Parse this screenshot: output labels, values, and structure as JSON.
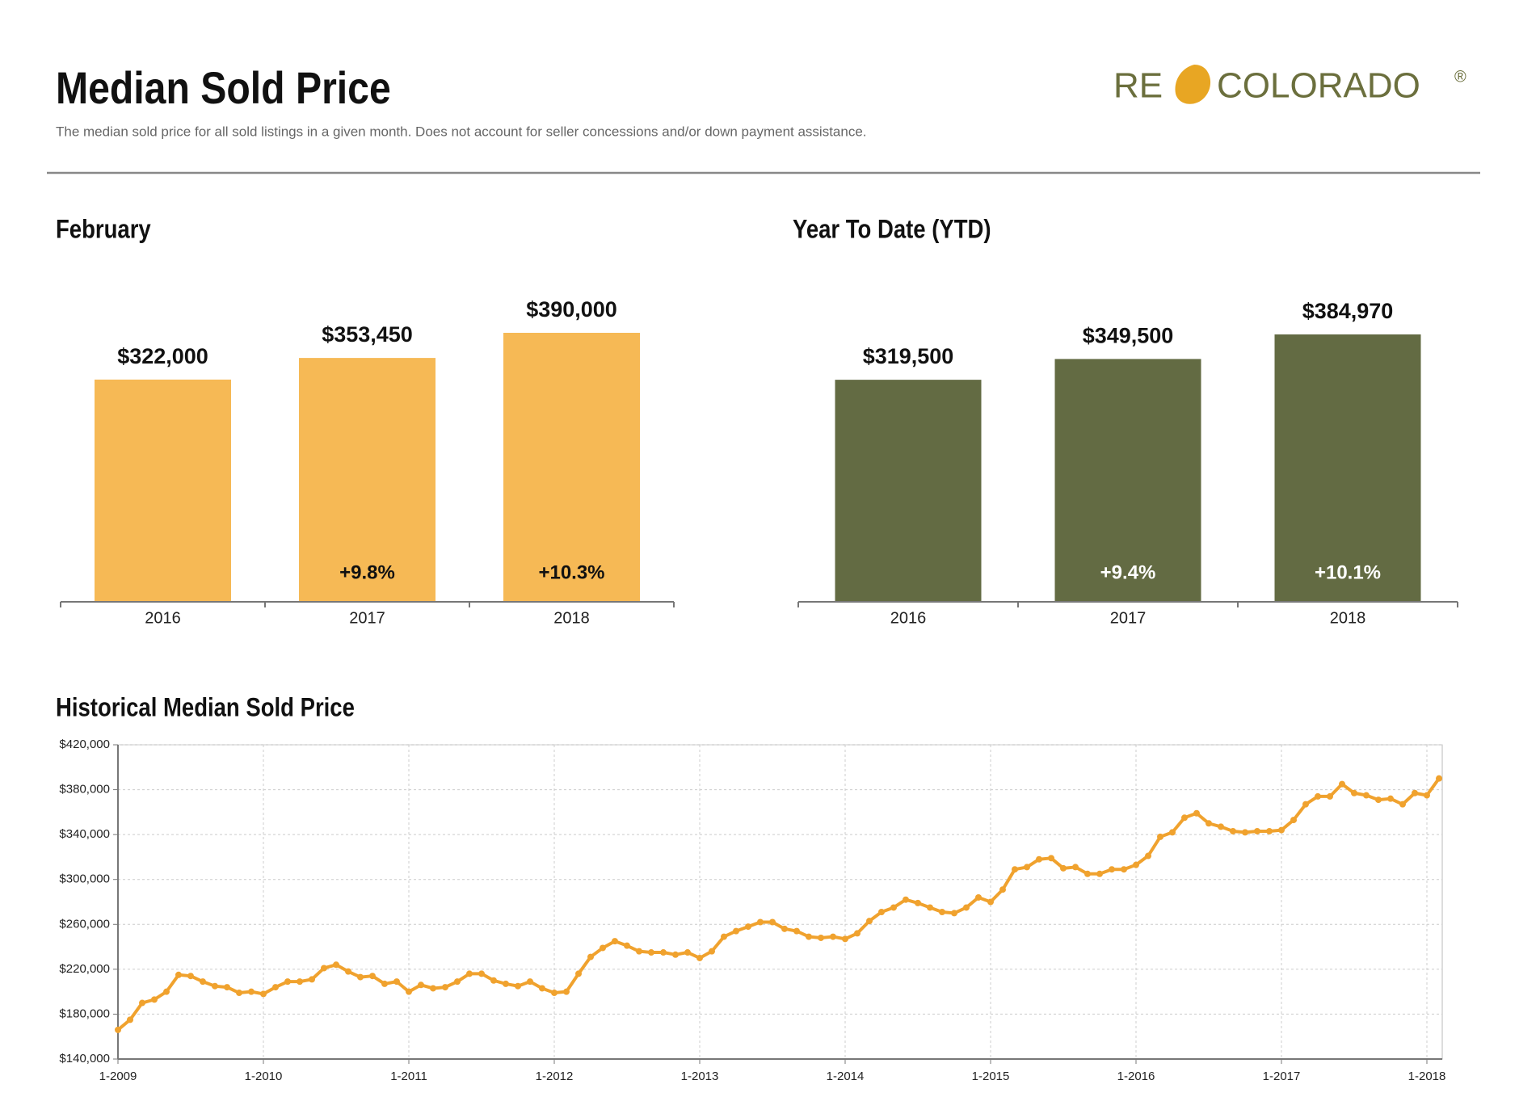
{
  "header": {
    "title": "Median Sold Price",
    "subtitle": "The median sold price for all sold listings in a given month. Does not account for seller concessions and/or down payment assistance.",
    "logo_left": "RE",
    "logo_right": "COLORADO",
    "logo_mark": "®"
  },
  "chart_data": [
    {
      "type": "bar",
      "title": "February",
      "categories": [
        "2016",
        "2017",
        "2018"
      ],
      "values": [
        322000,
        353450,
        390000
      ],
      "value_labels": [
        "$322,000",
        "$353,450",
        "$390,000"
      ],
      "change_labels": [
        null,
        "+9.8%",
        "+10.3%"
      ],
      "color": "#f6b955",
      "change_label_color": "#111111"
    },
    {
      "type": "bar",
      "title": "Year To Date (YTD)",
      "categories": [
        "2016",
        "2017",
        "2018"
      ],
      "values": [
        319500,
        349500,
        384970
      ],
      "value_labels": [
        "$319,500",
        "$349,500",
        "$384,970"
      ],
      "change_labels": [
        null,
        "+9.4%",
        "+10.1%"
      ],
      "color": "#636b43",
      "change_label_color": "#ffffff"
    },
    {
      "type": "line",
      "title": "Historical Median Sold Price",
      "categories": [
        "1-2009",
        null,
        null,
        null,
        null,
        null,
        null,
        null,
        null,
        null,
        null,
        null,
        "1-2010",
        null,
        null,
        null,
        null,
        null,
        null,
        null,
        null,
        null,
        null,
        null,
        "1-2011",
        null,
        null,
        null,
        null,
        null,
        null,
        null,
        null,
        null,
        null,
        null,
        "1-2012",
        null,
        null,
        null,
        null,
        null,
        null,
        null,
        null,
        null,
        null,
        null,
        "1-2013",
        null,
        null,
        null,
        null,
        null,
        null,
        null,
        null,
        null,
        null,
        null,
        "1-2014",
        null,
        null,
        null,
        null,
        null,
        null,
        null,
        null,
        null,
        null,
        null,
        "1-2015",
        null,
        null,
        null,
        null,
        null,
        null,
        null,
        null,
        null,
        null,
        null,
        "1-2016",
        null,
        null,
        null,
        null,
        null,
        null,
        null,
        null,
        null,
        null,
        null,
        "1-2017",
        null,
        null,
        null,
        null,
        null,
        null,
        null,
        null,
        null,
        null,
        null,
        "1-2018",
        null
      ],
      "series": [
        {
          "color": "#f0a22e",
          "values": [
            166000,
            175000,
            190000,
            193000,
            200000,
            215000,
            214000,
            209000,
            205000,
            204000,
            199000,
            200000,
            198000,
            204000,
            209000,
            209000,
            211000,
            221000,
            224000,
            218000,
            213000,
            214000,
            207000,
            209000,
            200000,
            206000,
            203000,
            204000,
            209000,
            216000,
            216000,
            210000,
            207000,
            205000,
            209000,
            203000,
            199000,
            200000,
            216000,
            231000,
            239000,
            245000,
            241000,
            236000,
            235000,
            235000,
            233000,
            235000,
            230000,
            236000,
            249000,
            254000,
            258000,
            262000,
            262000,
            256000,
            254000,
            249000,
            248000,
            249000,
            247000,
            252000,
            263000,
            271000,
            275000,
            282000,
            279000,
            275000,
            271000,
            270000,
            275000,
            284000,
            280000,
            291000,
            309000,
            311000,
            318000,
            319000,
            310000,
            311000,
            305000,
            305000,
            309000,
            309000,
            313000,
            321000,
            338000,
            342000,
            355000,
            359000,
            350000,
            347000,
            343000,
            342000,
            343000,
            343000,
            344000,
            353000,
            367000,
            374000,
            374000,
            385000,
            377000,
            375000,
            371000,
            372000,
            367000,
            377000,
            375000,
            390000
          ]
        }
      ],
      "ylim": [
        140000,
        420000
      ],
      "yticks": [
        {
          "value": 140000,
          "label": "$140,000"
        },
        {
          "value": 180000,
          "label": "$180,000"
        },
        {
          "value": 220000,
          "label": "$220,000"
        },
        {
          "value": 260000,
          "label": "$260,000"
        },
        {
          "value": 300000,
          "label": "$300,000"
        },
        {
          "value": 340000,
          "label": "$340,000"
        },
        {
          "value": 380000,
          "label": "$380,000"
        },
        {
          "value": 420000,
          "label": "$420,000"
        }
      ],
      "grid": true
    }
  ]
}
